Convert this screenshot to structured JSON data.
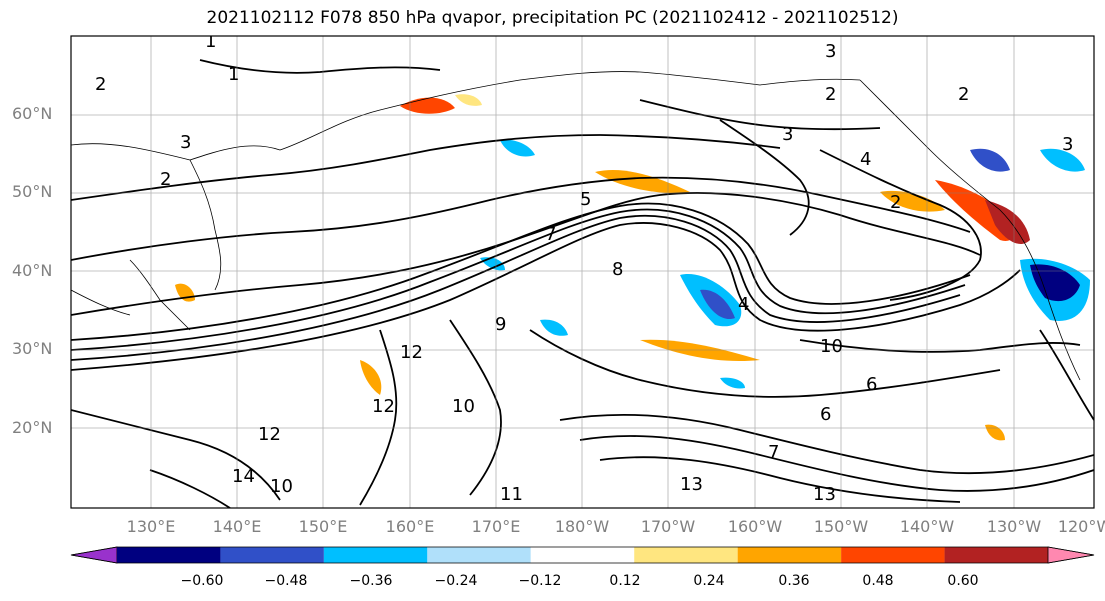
{
  "title": "2021102112 F078 850 hPa qvapor, precipitation PC (2021102412 - 2021102512)",
  "lat_labels": [
    "60°N",
    "50°N",
    "40°N",
    "30°N",
    "20°N"
  ],
  "lon_labels": [
    "130°E",
    "140°E",
    "150°E",
    "160°E",
    "170°E",
    "180°W",
    "170°W",
    "160°W",
    "150°W",
    "140°W",
    "130°W",
    "120°W"
  ],
  "contour_labels": [
    "1",
    "1",
    "2",
    "2",
    "3",
    "3",
    "3",
    "2",
    "2",
    "3",
    "4",
    "4",
    "2",
    "5",
    "7",
    "8",
    "9",
    "12",
    "12",
    "10",
    "12",
    "14",
    "10",
    "11",
    "13",
    "13",
    "7",
    "6",
    "6",
    "10"
  ],
  "colorbar": {
    "ticks": [
      "−0.60",
      "−0.48",
      "−0.36",
      "−0.24",
      "−0.12",
      "0.12",
      "0.24",
      "0.36",
      "0.48",
      "0.60"
    ],
    "colors": [
      "#9932cc",
      "#000080",
      "#3050c8",
      "#00bfff",
      "#b0e0fa",
      "#ffffff",
      "#ffe680",
      "#ffa500",
      "#ff4500",
      "#b22222",
      "#ff88b0"
    ]
  }
}
